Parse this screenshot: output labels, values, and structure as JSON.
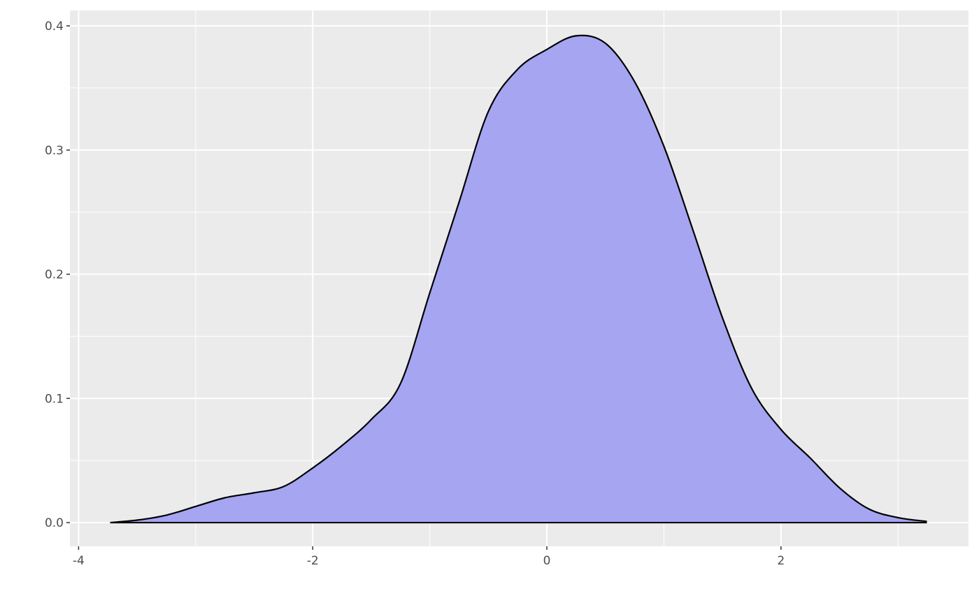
{
  "chart_data": {
    "type": "area",
    "x": [
      -3.73,
      -3.5,
      -3.25,
      -3.0,
      -2.75,
      -2.5,
      -2.25,
      -2.0,
      -1.75,
      -1.5,
      -1.25,
      -1.0,
      -0.75,
      -0.5,
      -0.25,
      0,
      0.25,
      0.5,
      0.75,
      1.0,
      1.25,
      1.5,
      1.75,
      2.0,
      2.25,
      2.5,
      2.75,
      3.0,
      3.24
    ],
    "values": [
      0,
      0.002,
      0.006,
      0.013,
      0.02,
      0.024,
      0.029,
      0.044,
      0.062,
      0.083,
      0.112,
      0.185,
      0.258,
      0.331,
      0.365,
      0.381,
      0.392,
      0.386,
      0.355,
      0.303,
      0.235,
      0.165,
      0.108,
      0.075,
      0.052,
      0.028,
      0.011,
      0.004,
      0.001
    ],
    "color": "#a5a5f2",
    "line_color": "#000000",
    "xlim": [
      -4.074,
      3.602
    ],
    "ylim": [
      -0.0191,
      0.4124
    ],
    "xticks": [
      -4,
      -2,
      0,
      2
    ],
    "yticks": [
      {
        "value": 0,
        "label": "0.0"
      },
      {
        "value": 0.1,
        "label": "0.1"
      },
      {
        "value": 0.2,
        "label": "0.2"
      },
      {
        "value": 0.3,
        "label": "0.3"
      },
      {
        "value": 0.4,
        "label": "0.4"
      }
    ],
    "xminor": [
      -3,
      -1,
      1,
      3
    ],
    "yminor": [
      0.05,
      0.15,
      0.25,
      0.35
    ],
    "grid": true
  }
}
